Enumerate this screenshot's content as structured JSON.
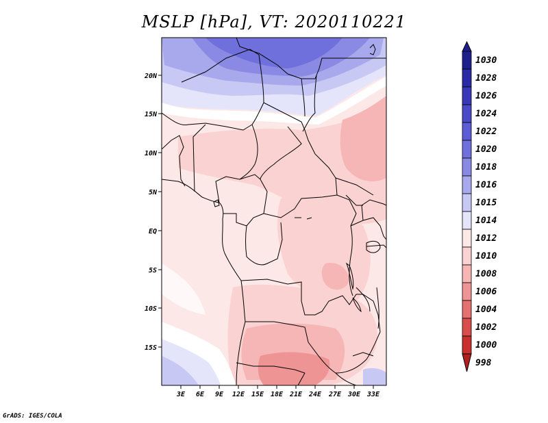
{
  "title": "MSLP [hPa], VT: 2020110221",
  "credit": "GrADS: IGES/COLA",
  "map": {
    "lat_labels": [
      "20N",
      "15N",
      "10N",
      "5N",
      "EQ",
      "5S",
      "10S",
      "15S"
    ],
    "lon_labels": [
      "3E",
      "6E",
      "9E",
      "12E",
      "15E",
      "18E",
      "21E",
      "24E",
      "27E",
      "30E",
      "33E"
    ]
  },
  "legend": {
    "levels": [
      "1030",
      "1028",
      "1026",
      "1024",
      "1022",
      "1020",
      "1018",
      "1016",
      "1015",
      "1014",
      "1012",
      "1010",
      "1008",
      "1006",
      "1004",
      "1002",
      "1000",
      "998"
    ],
    "colors": [
      "#1f1f8c",
      "#2a2aa6",
      "#3838b8",
      "#4a4ac8",
      "#5c5cd4",
      "#7070dc",
      "#8a8ae4",
      "#a8a8ec",
      "#c8c8f4",
      "#e4e4fa",
      "#fde8e8",
      "#fbd2d2",
      "#f6b6b6",
      "#ef9494",
      "#e47070",
      "#d84c4c",
      "#c83030",
      "#b02020"
    ]
  }
}
